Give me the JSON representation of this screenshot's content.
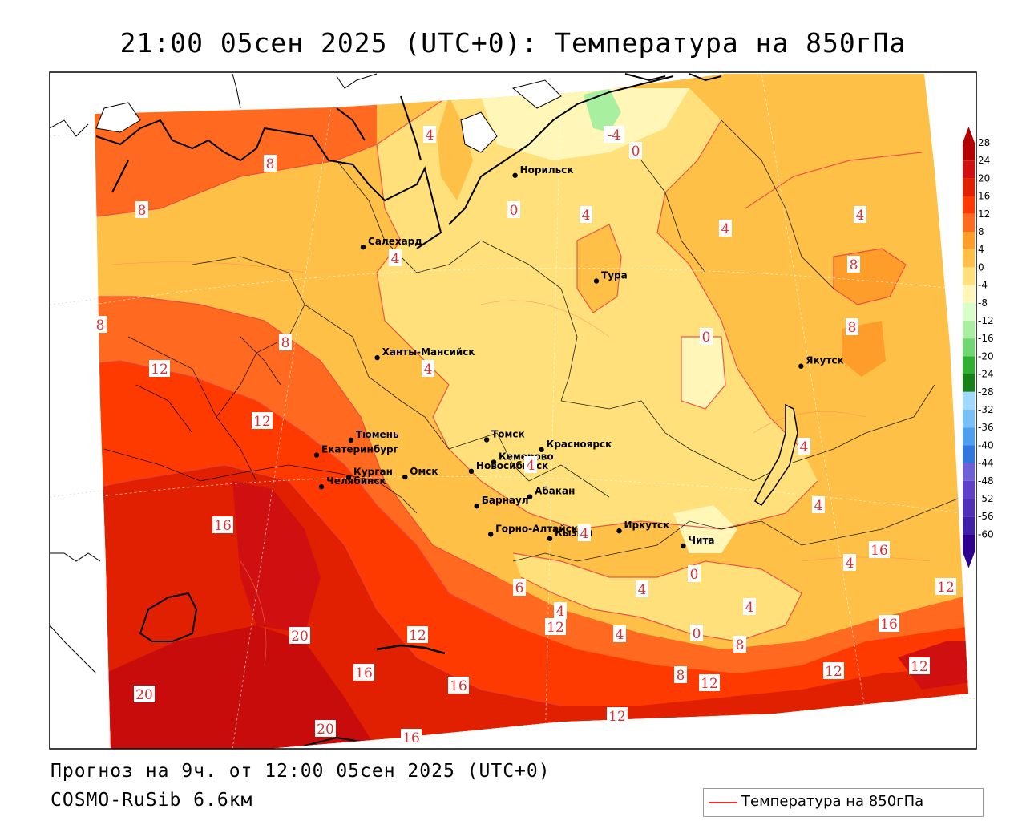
{
  "title": "21:00 05сен 2025 (UTC+0): Температура на 850гПа",
  "footer": {
    "forecast": "Прогноз на 9ч. от 12:00 05сен 2025 (UTC+0)",
    "model": "COSMO-RuSib 6.6км"
  },
  "legend": {
    "label": "Температура на 850гПа",
    "color": "#e83030"
  },
  "colorbar": {
    "labels": [
      "28",
      "24",
      "20",
      "16",
      "12",
      "8",
      "4",
      "0",
      "-4",
      "-8",
      "-12",
      "-16",
      "-20",
      "-24",
      "-28",
      "-32",
      "-36",
      "-40",
      "-44",
      "-48",
      "-52",
      "-56",
      "-60"
    ],
    "colors": [
      "#b40000",
      "#d01010",
      "#e02000",
      "#ff3a00",
      "#ff6a20",
      "#ff9d2a",
      "#ffc048",
      "#ffe07a",
      "#fff6b8",
      "#d8ffc8",
      "#a8f0a0",
      "#70d870",
      "#30b030",
      "#178017",
      "#a0d8ff",
      "#78c0f8",
      "#4d9ff0",
      "#3078e0",
      "#7060d8",
      "#6040c8",
      "#5030b8",
      "#4020a8",
      "#300090"
    ]
  },
  "cities": [
    {
      "name": "Якутск",
      "lon": 129.7,
      "lat": 62.0
    },
    {
      "name": "Норильск",
      "lon": 88.2,
      "lat": 69.3
    },
    {
      "name": "Салехард",
      "lon": 66.6,
      "lat": 66.5
    },
    {
      "name": "Тура",
      "lon": 100.2,
      "lat": 64.3
    },
    {
      "name": "Ханты-Мансийск",
      "lon": 69.0,
      "lat": 61.0
    },
    {
      "name": "Екатеринбург",
      "lon": 60.6,
      "lat": 56.8
    },
    {
      "name": "Тюмень",
      "lon": 65.5,
      "lat": 57.2
    },
    {
      "name": "Челябинск",
      "lon": 61.4,
      "lat": 55.2
    },
    {
      "name": "Курган",
      "lon": 65.3,
      "lat": 55.4
    },
    {
      "name": "Омск",
      "lon": 73.4,
      "lat": 55.0
    },
    {
      "name": "Томск",
      "lon": 85.0,
      "lat": 56.5
    },
    {
      "name": "Красноярск",
      "lon": 92.9,
      "lat": 56.0
    },
    {
      "name": "Новосибирск",
      "lon": 82.9,
      "lat": 55.0
    },
    {
      "name": "Кемерово",
      "lon": 86.1,
      "lat": 55.4
    },
    {
      "name": "Барнаул",
      "lon": 83.8,
      "lat": 53.3
    },
    {
      "name": "Абакан",
      "lon": 91.4,
      "lat": 53.7
    },
    {
      "name": "Иркутск",
      "lon": 104.3,
      "lat": 52.3
    },
    {
      "name": "Чита",
      "lon": 113.5,
      "lat": 52.0
    },
    {
      "name": "Горно-Алтайск",
      "lon": 85.9,
      "lat": 51.9
    },
    {
      "name": "Кызыл",
      "lon": 94.4,
      "lat": 51.7
    }
  ],
  "isotherm_labels": [
    "4",
    "-4",
    "0",
    "0",
    "4",
    "4",
    "4",
    "8",
    "8",
    "8",
    "8",
    "8",
    "12",
    "12",
    "4",
    "4",
    "0",
    "8",
    "4",
    "4",
    "4",
    "4",
    "4",
    "16",
    "6",
    "4",
    "4",
    "0",
    "4",
    "12",
    "4",
    "20",
    "12",
    "16",
    "0",
    "8",
    "16",
    "20",
    "8",
    "12",
    "12",
    "12",
    "16",
    "20",
    "16",
    "12",
    "12",
    "16"
  ]
}
